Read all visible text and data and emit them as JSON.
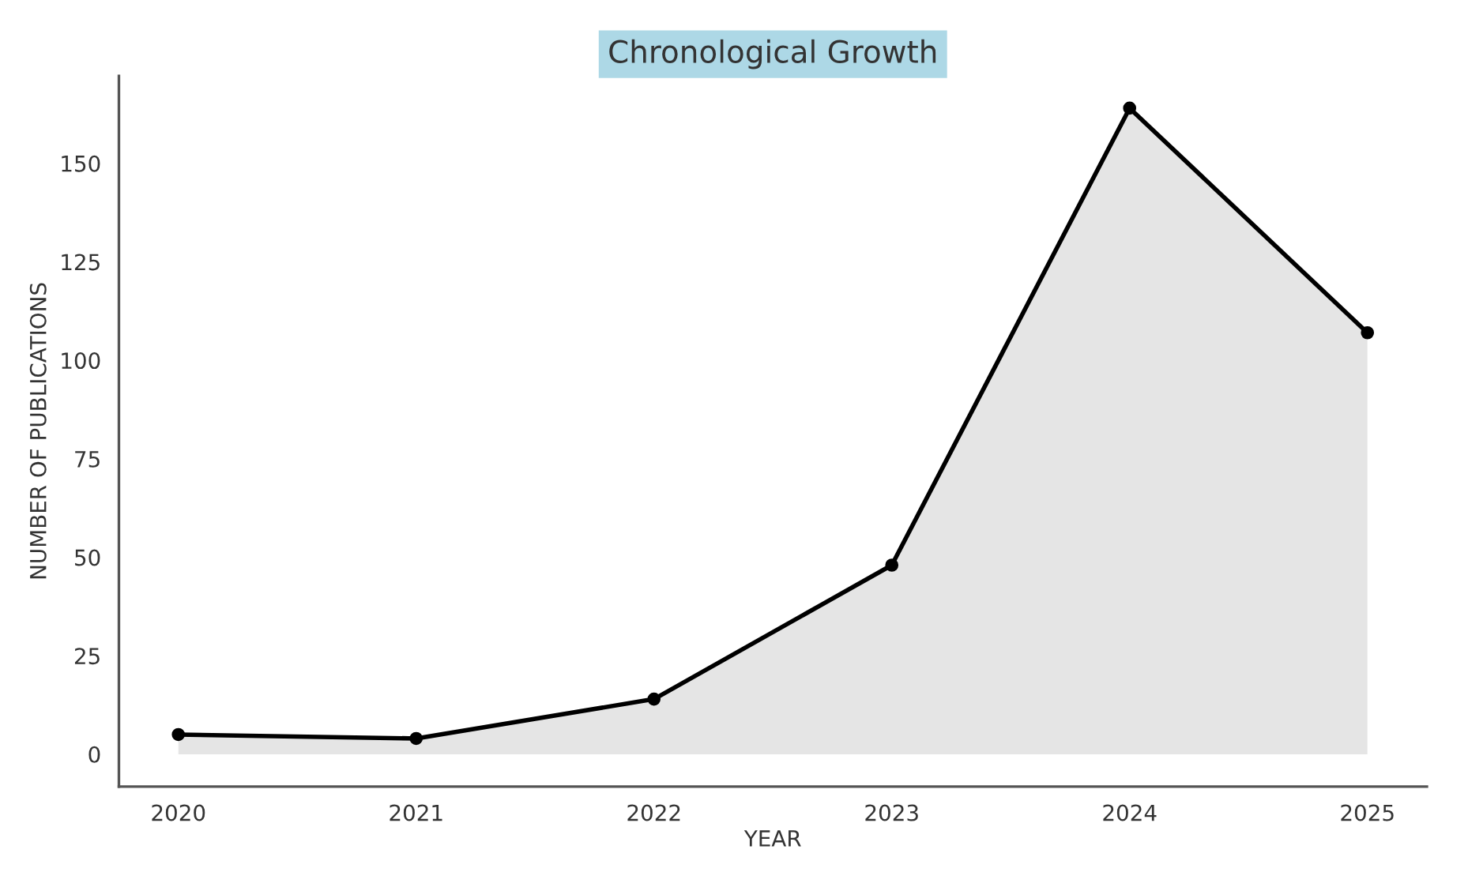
{
  "chart_data": {
    "type": "area",
    "title": "Chronological Growth",
    "xlabel": "YEAR",
    "ylabel": "NUMBER OF PUBLICATIONS",
    "x": [
      2020,
      2021,
      2022,
      2023,
      2024,
      2025
    ],
    "series": [
      {
        "color": "#000000",
        "values": [
          5,
          4,
          14,
          48,
          164,
          107
        ]
      }
    ],
    "xlim": [
      2019.75,
      2025.25
    ],
    "xticks": [
      2020,
      2021,
      2022,
      2023,
      2024,
      2025
    ],
    "ylim": [
      -8.2,
      172.2
    ],
    "yticks": [
      0,
      25,
      50,
      75,
      100,
      125,
      150
    ],
    "marker": "circle",
    "line_style": "solid",
    "grid": false,
    "legend": false
  }
}
